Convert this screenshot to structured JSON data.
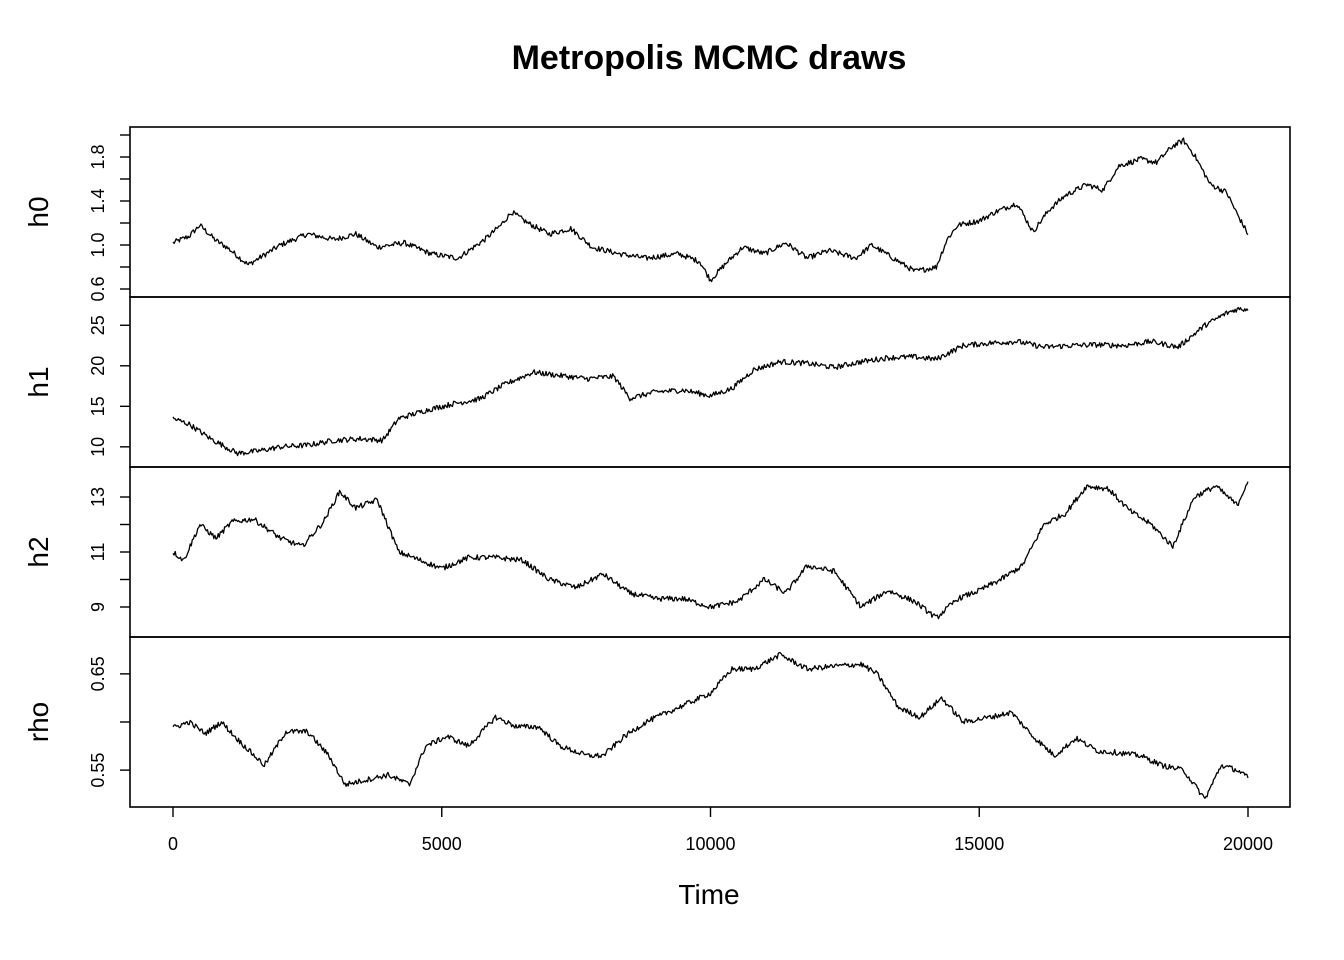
{
  "chart_data": {
    "type": "line",
    "title": "Metropolis MCMC draws",
    "xlabel": "Time",
    "xlim": [
      0,
      20000
    ],
    "x_ticks": [
      0,
      5000,
      10000,
      15000,
      20000
    ],
    "x_tick_labels": [
      "0",
      "5000",
      "10000",
      "15000",
      "20000"
    ],
    "grid": false,
    "panels": [
      {
        "ylabel": "h0",
        "ylim": [
          0.6,
          2.0
        ],
        "y_ticks": [
          0.6,
          0.8,
          1.0,
          1.2,
          1.4,
          1.6,
          1.8,
          2.0
        ],
        "y_tick_labels": [
          "0.6",
          "1.0",
          "1.4",
          "1.8"
        ],
        "y_tick_label_values": [
          0.6,
          1.0,
          1.4,
          1.8
        ],
        "x": [
          0,
          300,
          500,
          800,
          1000,
          1400,
          2000,
          2500,
          3000,
          3400,
          3800,
          4300,
          4800,
          5300,
          5800,
          6100,
          6300,
          6600,
          7000,
          7400,
          7800,
          8300,
          8800,
          9400,
          9800,
          10000,
          10300,
          10600,
          11000,
          11400,
          11800,
          12200,
          12700,
          13000,
          13400,
          13800,
          14200,
          14400,
          14600,
          15000,
          15300,
          15700,
          16000,
          16300,
          16600,
          17000,
          17300,
          17600,
          18000,
          18300,
          18600,
          18800,
          19000,
          19300,
          19600,
          19800,
          20000
        ],
        "y": [
          1.02,
          1.08,
          1.18,
          1.04,
          0.98,
          0.82,
          1.0,
          1.1,
          1.05,
          1.1,
          0.98,
          1.02,
          0.92,
          0.88,
          1.05,
          1.18,
          1.3,
          1.2,
          1.1,
          1.15,
          0.98,
          0.92,
          0.88,
          0.92,
          0.85,
          0.68,
          0.84,
          0.98,
          0.92,
          1.02,
          0.88,
          0.95,
          0.88,
          1.0,
          0.88,
          0.76,
          0.8,
          1.05,
          1.18,
          1.22,
          1.3,
          1.38,
          1.12,
          1.32,
          1.45,
          1.55,
          1.5,
          1.72,
          1.78,
          1.75,
          1.9,
          1.95,
          1.82,
          1.55,
          1.48,
          1.28,
          1.1
        ]
      },
      {
        "ylabel": "h1",
        "ylim": [
          8.5,
          27.5
        ],
        "y_ticks": [
          10,
          15,
          20,
          25
        ],
        "y_tick_labels": [
          "10",
          "15",
          "20",
          "25"
        ],
        "x": [
          0,
          300,
          700,
          1200,
          1600,
          2000,
          2500,
          3000,
          3500,
          3900,
          4200,
          4700,
          5200,
          5700,
          6200,
          6700,
          7200,
          7700,
          8200,
          8500,
          9000,
          9500,
          10000,
          10400,
          10800,
          11300,
          11800,
          12300,
          12800,
          13300,
          13800,
          14200,
          14700,
          15200,
          15700,
          16200,
          16700,
          17200,
          17700,
          18200,
          18700,
          19200,
          19600,
          19800,
          20000
        ],
        "y": [
          13.5,
          12.8,
          11.0,
          9.2,
          9.5,
          10.0,
          10.2,
          10.8,
          11.0,
          10.8,
          13.5,
          14.5,
          15.3,
          15.9,
          17.8,
          19.2,
          18.8,
          18.4,
          18.7,
          16.0,
          16.8,
          17.0,
          16.3,
          17.2,
          19.5,
          20.5,
          20.3,
          19.8,
          20.5,
          21.0,
          21.1,
          20.8,
          22.5,
          22.8,
          23.0,
          22.3,
          22.5,
          22.6,
          22.5,
          23.0,
          22.3,
          25.0,
          26.5,
          27.0,
          27.0
        ]
      },
      {
        "ylabel": "h2",
        "ylim": [
          8.2,
          13.8
        ],
        "y_ticks": [
          9,
          10,
          11,
          12,
          13
        ],
        "y_tick_labels": [
          "9",
          "11",
          "13"
        ],
        "y_tick_label_values": [
          9,
          11,
          13
        ],
        "x": [
          0,
          200,
          500,
          800,
          1100,
          1500,
          2000,
          2400,
          2800,
          3100,
          3400,
          3800,
          4200,
          4600,
          5000,
          5500,
          6000,
          6500,
          7000,
          7500,
          8000,
          8500,
          9000,
          9500,
          10000,
          10500,
          11000,
          11400,
          11800,
          12300,
          12800,
          13300,
          13800,
          14200,
          14600,
          15000,
          15400,
          15800,
          16200,
          16600,
          17000,
          17400,
          17800,
          18200,
          18600,
          19000,
          19400,
          19800,
          20000
        ],
        "y": [
          11.0,
          10.7,
          12.0,
          11.5,
          12.1,
          12.2,
          11.5,
          11.2,
          12.1,
          13.2,
          12.6,
          12.9,
          11.0,
          10.7,
          10.4,
          10.8,
          10.8,
          10.7,
          10.0,
          9.7,
          10.2,
          9.5,
          9.3,
          9.3,
          9.0,
          9.2,
          10.0,
          9.5,
          10.5,
          10.3,
          9.0,
          9.6,
          9.2,
          8.6,
          9.3,
          9.6,
          10.0,
          10.5,
          12.0,
          12.4,
          13.4,
          13.3,
          12.5,
          12.0,
          11.2,
          13.0,
          13.4,
          12.7,
          13.6
        ]
      },
      {
        "ylabel": "rho",
        "ylim": [
          0.52,
          0.68
        ],
        "y_ticks": [
          0.55,
          0.6,
          0.65
        ],
        "y_tick_labels": [
          "0.55",
          "0.65"
        ],
        "y_tick_label_values": [
          0.55,
          0.65
        ],
        "x": [
          0,
          300,
          600,
          900,
          1200,
          1700,
          2100,
          2500,
          2900,
          3200,
          3600,
          4000,
          4400,
          4700,
          5100,
          5500,
          6000,
          6400,
          6800,
          7200,
          7700,
          8000,
          8400,
          8800,
          9200,
          9600,
          10000,
          10400,
          10800,
          11300,
          11800,
          12300,
          12800,
          13100,
          13500,
          13900,
          14300,
          14700,
          15200,
          15600,
          16000,
          16400,
          16800,
          17200,
          17600,
          18000,
          18400,
          18800,
          19200,
          19500,
          19800,
          20000
        ],
        "y": [
          0.594,
          0.6,
          0.588,
          0.6,
          0.582,
          0.555,
          0.59,
          0.59,
          0.565,
          0.535,
          0.54,
          0.545,
          0.535,
          0.575,
          0.585,
          0.575,
          0.605,
          0.595,
          0.595,
          0.575,
          0.565,
          0.565,
          0.585,
          0.6,
          0.61,
          0.62,
          0.63,
          0.655,
          0.655,
          0.67,
          0.655,
          0.658,
          0.66,
          0.65,
          0.615,
          0.605,
          0.625,
          0.6,
          0.605,
          0.61,
          0.585,
          0.565,
          0.583,
          0.57,
          0.568,
          0.565,
          0.555,
          0.55,
          0.52,
          0.555,
          0.55,
          0.542
        ]
      }
    ]
  }
}
